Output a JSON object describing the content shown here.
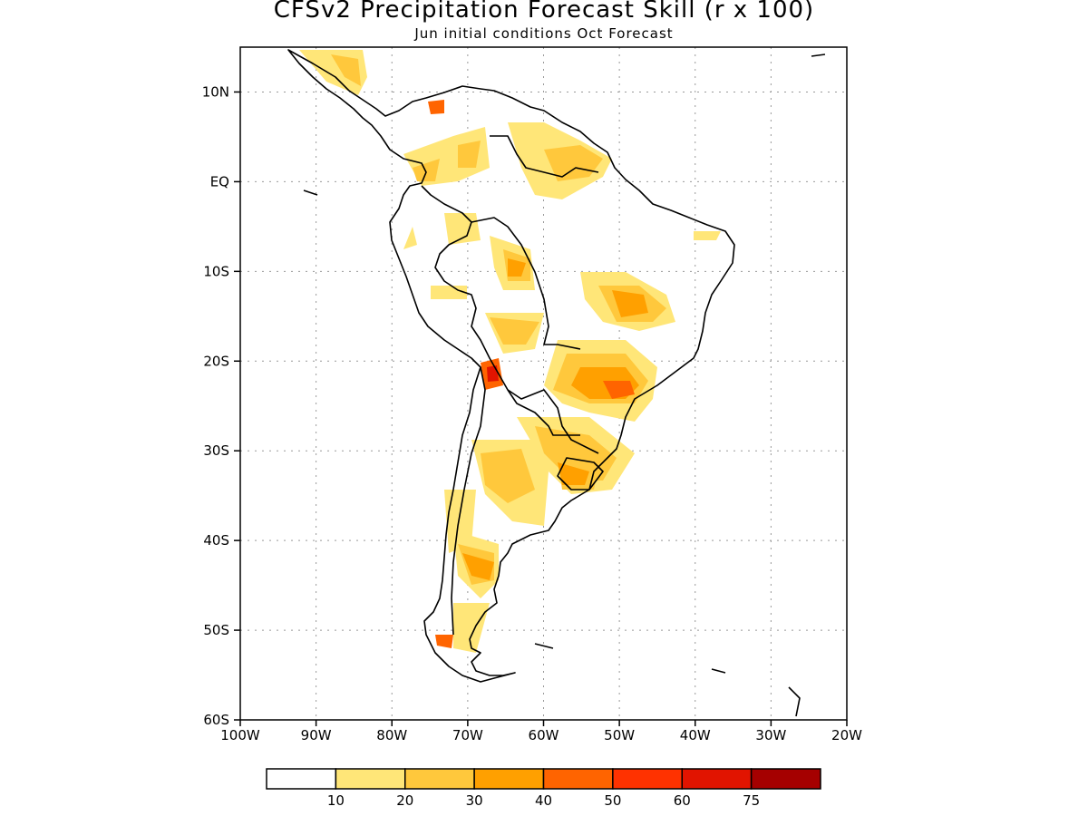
{
  "title": "CFSv2 Precipitation Forecast Skill (r x 100)",
  "subtitle": "Jun initial conditions  Oct Forecast",
  "map": {
    "lon_range": [
      -100,
      -20
    ],
    "lat_range": [
      -60,
      15
    ],
    "grid": "dotted",
    "lat_ticks": [
      {
        "value": 10,
        "label": "10N"
      },
      {
        "value": 0,
        "label": "EQ"
      },
      {
        "value": -10,
        "label": "10S"
      },
      {
        "value": -20,
        "label": "20S"
      },
      {
        "value": -30,
        "label": "30S"
      },
      {
        "value": -40,
        "label": "40S"
      },
      {
        "value": -50,
        "label": "50S"
      },
      {
        "value": -60,
        "label": "60S"
      }
    ],
    "lon_ticks": [
      {
        "value": -100,
        "label": "100W"
      },
      {
        "value": -90,
        "label": "90W"
      },
      {
        "value": -80,
        "label": "80W"
      },
      {
        "value": -70,
        "label": "70W"
      },
      {
        "value": -60,
        "label": "60W"
      },
      {
        "value": -50,
        "label": "50W"
      },
      {
        "value": -40,
        "label": "40W"
      },
      {
        "value": -30,
        "label": "30W"
      },
      {
        "value": -20,
        "label": "20W"
      }
    ]
  },
  "colorbar": {
    "colors": [
      "#ffffff",
      "#ffe678",
      "#ffc83c",
      "#ffa000",
      "#ff6400",
      "#ff3200",
      "#e11400",
      "#a50000"
    ],
    "labels": [
      "10",
      "20",
      "30",
      "40",
      "50",
      "60",
      "75"
    ]
  }
}
